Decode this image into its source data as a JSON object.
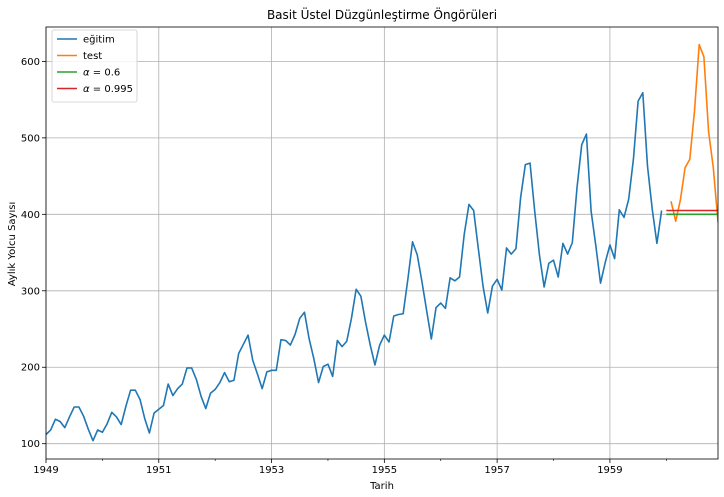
{
  "chart_data": {
    "type": "line",
    "title": "Basit Üstel Düzgünleştirme Öngörüleri",
    "xlabel": "Tarih",
    "ylabel": "Aylık Yolcu Sayısı",
    "xlim": [
      "1949-01",
      "1960-12"
    ],
    "ylim": [
      80,
      645
    ],
    "grid": true,
    "legend_position": "top-left",
    "x_ticks": [
      "1949",
      "1951",
      "1953",
      "1955",
      "1957",
      "1959"
    ],
    "y_ticks": [
      100,
      200,
      300,
      400,
      500,
      600
    ],
    "series": [
      {
        "name": "eğitim",
        "color": "#1f77b4",
        "start": "1949-01",
        "values": [
          112,
          118,
          132,
          129,
          121,
          135,
          148,
          148,
          136,
          119,
          104,
          118,
          115,
          126,
          141,
          135,
          125,
          149,
          170,
          170,
          158,
          133,
          114,
          140,
          145,
          150,
          178,
          163,
          172,
          178,
          199,
          199,
          184,
          162,
          146,
          166,
          171,
          180,
          193,
          181,
          183,
          218,
          230,
          242,
          209,
          191,
          172,
          194,
          196,
          196,
          236,
          235,
          229,
          243,
          264,
          272,
          237,
          211,
          180,
          201,
          204,
          188,
          235,
          227,
          234,
          264,
          302,
          293,
          259,
          229,
          203,
          229,
          242,
          233,
          267,
          269,
          270,
          315,
          364,
          347,
          312,
          274,
          237,
          278,
          284,
          277,
          317,
          313,
          318,
          374,
          413,
          405,
          355,
          306,
          271,
          306,
          315,
          301,
          356,
          348,
          355,
          422,
          465,
          467,
          404,
          347,
          305,
          336,
          340,
          318,
          362,
          348,
          363,
          435,
          491,
          505,
          404,
          359,
          310,
          337,
          360,
          342,
          406,
          396,
          420,
          472,
          548,
          559,
          463,
          407,
          362,
          405
        ]
      },
      {
        "name": "test",
        "color": "#ff7f0e",
        "start": "1960-02",
        "values": [
          417,
          391,
          419,
          461,
          472,
          535,
          622,
          606,
          508,
          461,
          390,
          432
        ]
      },
      {
        "name": "α = 0.6",
        "label_prefix": "α",
        "label_value": "= 0.6",
        "color": "#2ca02c",
        "start": "1960-01",
        "values": [
          400,
          400,
          400,
          400,
          400,
          400,
          400,
          400,
          400,
          400,
          400,
          400
        ]
      },
      {
        "name": "α = 0.995",
        "label_prefix": "α",
        "label_value": "= 0.995",
        "color": "#d62728",
        "start": "1960-01",
        "values": [
          405,
          405,
          405,
          405,
          405,
          405,
          405,
          405,
          405,
          405,
          405,
          405
        ]
      }
    ]
  }
}
